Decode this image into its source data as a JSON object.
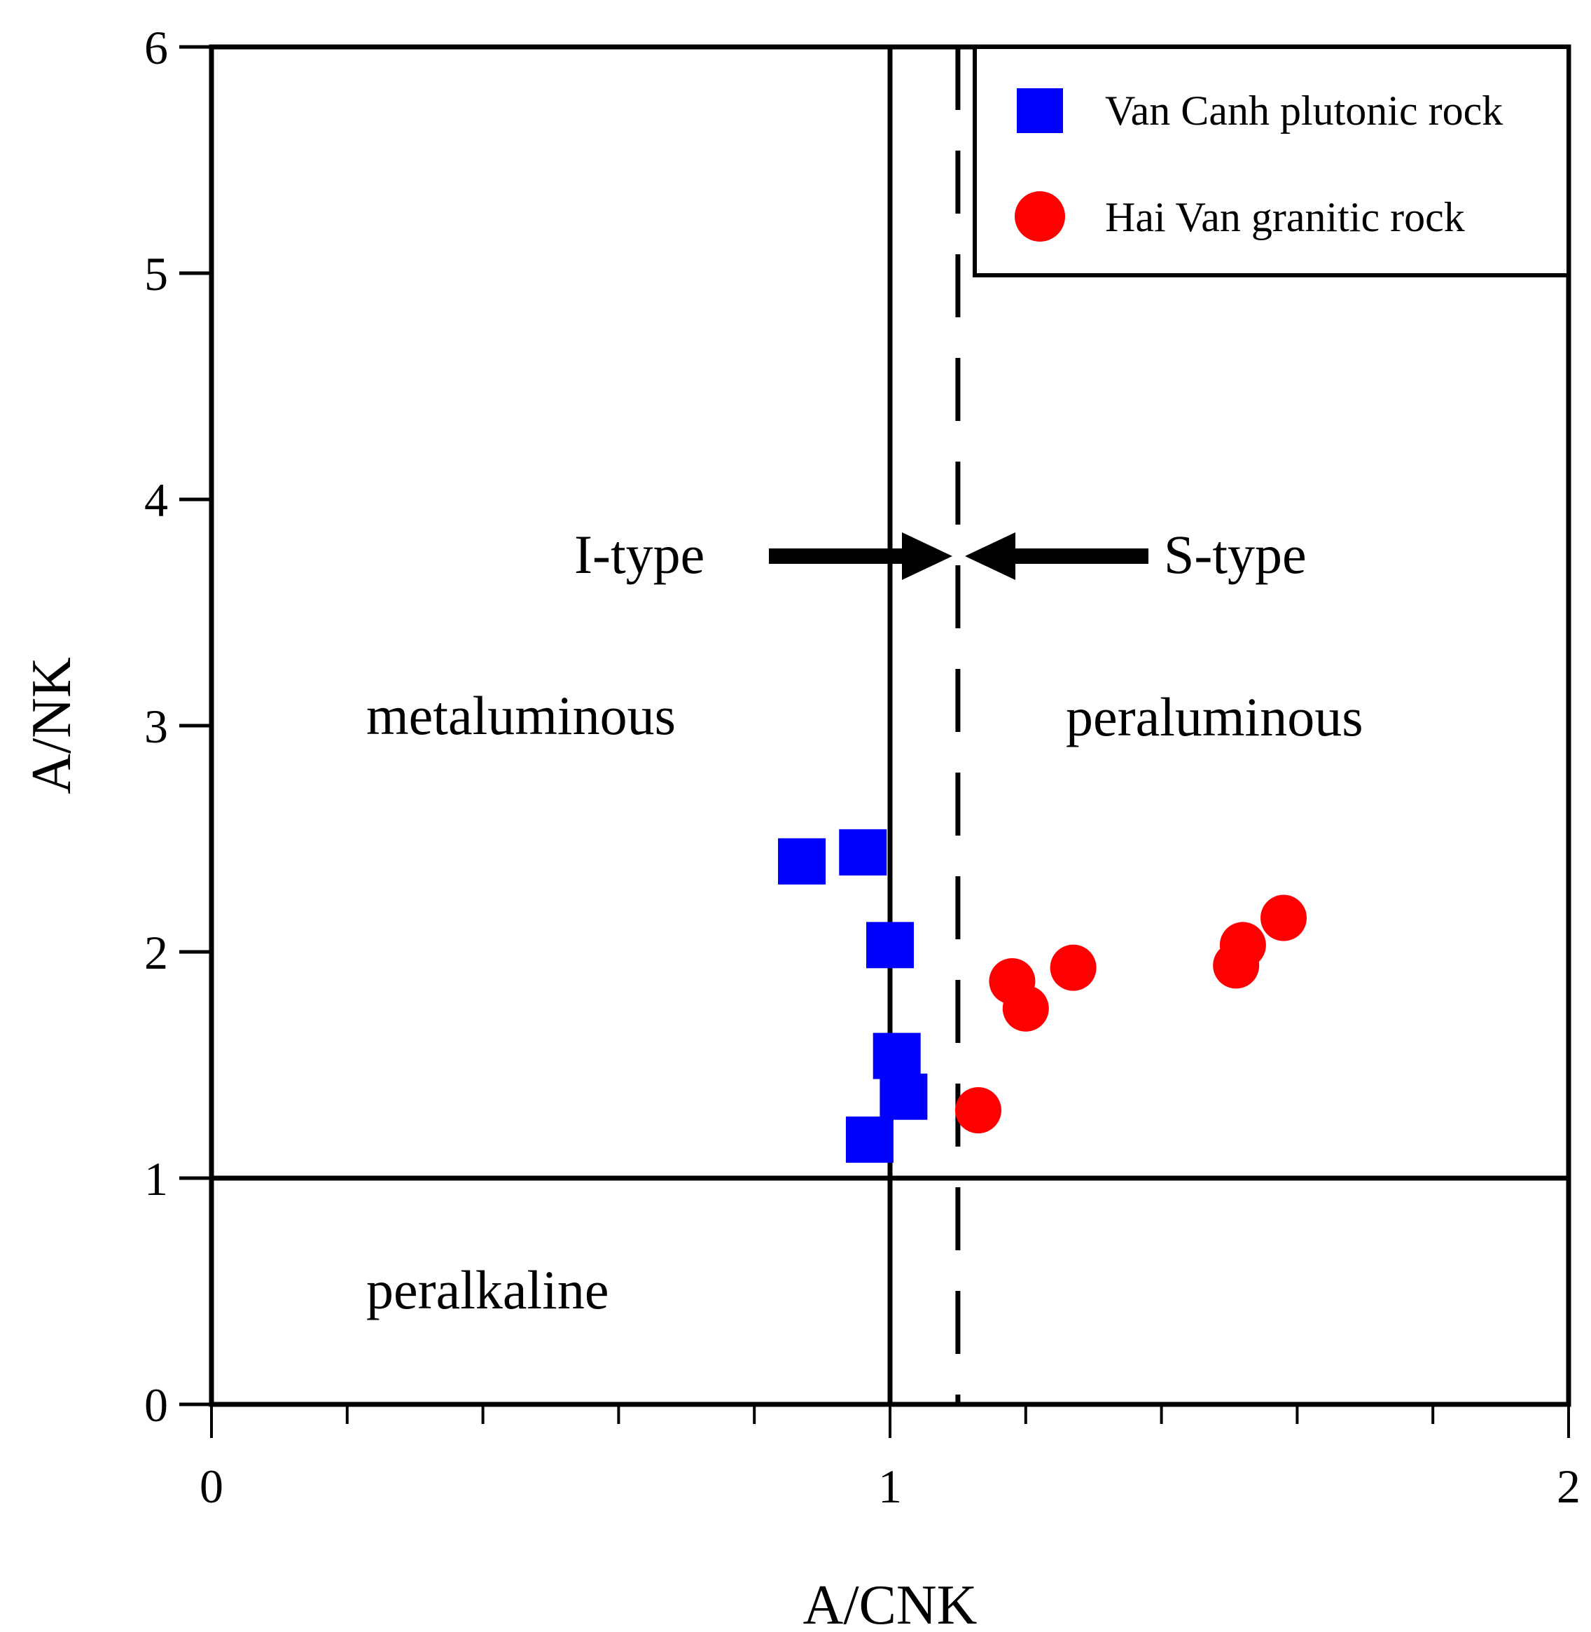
{
  "chart_data": {
    "type": "scatter",
    "title": "",
    "xlabel": "A/CNK",
    "ylabel": "A/NK",
    "xlim": [
      0,
      2
    ],
    "ylim": [
      0,
      6
    ],
    "x_ticks": [
      "0",
      "1",
      "2"
    ],
    "y_ticks": [
      "0",
      "1",
      "2",
      "3",
      "4",
      "5",
      "6"
    ],
    "legend_position": "top-right",
    "grid": false,
    "series": [
      {
        "name": "Van Canh plutonic rock",
        "marker": "square",
        "color": "#0000ff",
        "points": [
          {
            "x": 0.87,
            "y": 2.4
          },
          {
            "x": 0.96,
            "y": 2.44
          },
          {
            "x": 1.0,
            "y": 2.03
          },
          {
            "x": 1.01,
            "y": 1.54
          },
          {
            "x": 1.02,
            "y": 1.36
          },
          {
            "x": 0.97,
            "y": 1.17
          }
        ]
      },
      {
        "name": "Hai Van granitic rock",
        "marker": "circle",
        "color": "#ff0000",
        "points": [
          {
            "x": 1.13,
            "y": 1.3
          },
          {
            "x": 1.18,
            "y": 1.87
          },
          {
            "x": 1.2,
            "y": 1.75
          },
          {
            "x": 1.27,
            "y": 1.93
          },
          {
            "x": 1.51,
            "y": 1.94
          },
          {
            "x": 1.52,
            "y": 2.03
          },
          {
            "x": 1.58,
            "y": 2.15
          }
        ]
      }
    ],
    "boundaries": {
      "metaluminous_peraluminous_x": 1.0,
      "i_s_type_x": 1.1,
      "peralkaline_y": 1.0
    },
    "annotations": {
      "i_type": "I-type",
      "s_type": "S-type",
      "metaluminous": "metaluminous",
      "peraluminous": "peraluminous",
      "peralkaline": "peralkaline"
    }
  }
}
